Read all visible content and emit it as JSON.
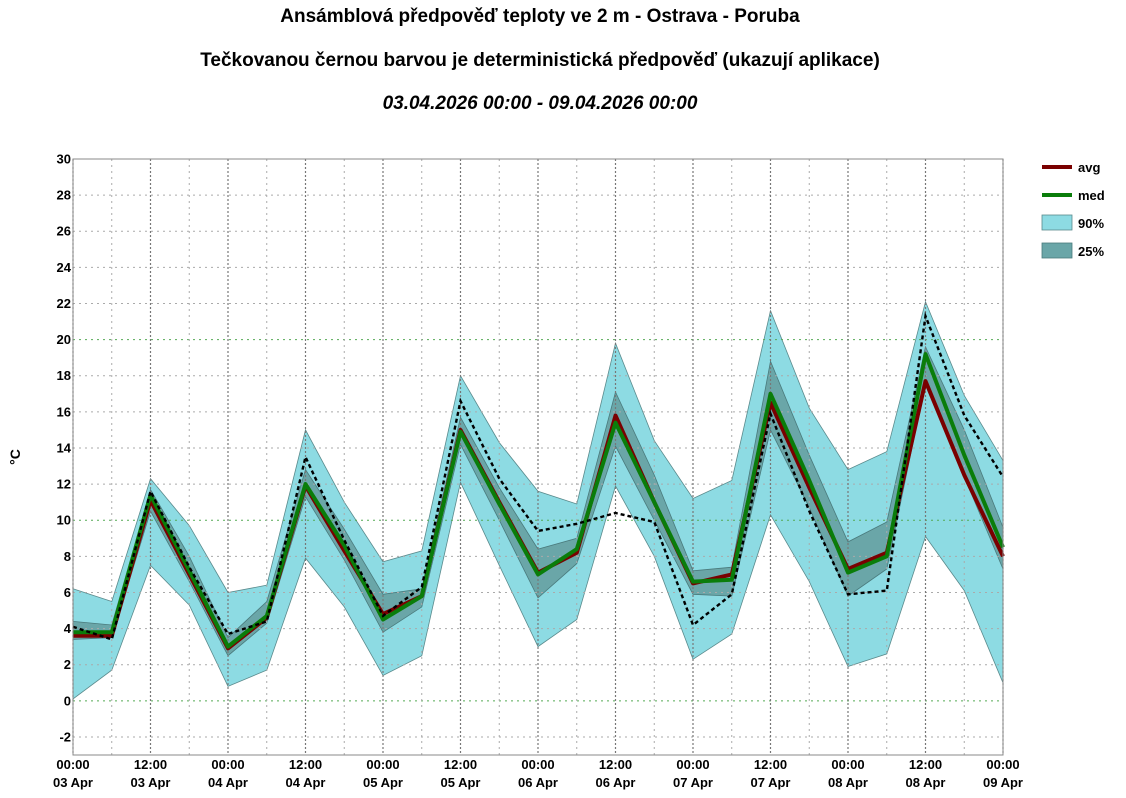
{
  "header": {
    "title": "Ansámblová předpověď teploty ve 2 m - Ostrava - Poruba",
    "subtitle": "Tečkovanou černou barvou je deterministická předpověď (ukazují aplikace)",
    "date_range": "03.04.2026 00:00 - 09.04.2026 00:00"
  },
  "colors": {
    "avg": "#7a0000",
    "med": "#0a7d0a",
    "band90": "#8ddbe3",
    "band25": "#6aa6a8",
    "deterministic": "#000000",
    "grid_major": "#777777",
    "grid_minor": "#aaaaaa",
    "grid_green": "#55aa55"
  },
  "chart_data": {
    "type": "line",
    "title": "Ansámblová předpověď teploty ve 2 m - Ostrava - Poruba",
    "xlabel": "",
    "ylabel": "°C",
    "ylim": [
      -3,
      30
    ],
    "yticks": [
      -2,
      0,
      2,
      4,
      6,
      8,
      10,
      12,
      14,
      16,
      18,
      20,
      22,
      24,
      26,
      28,
      30
    ],
    "xlim": [
      "2026-04-03 00:00",
      "2026-04-09 00:00"
    ],
    "xtick_labels": [
      [
        "00:00",
        "03 Apr"
      ],
      [
        "12:00",
        "03 Apr"
      ],
      [
        "00:00",
        "04 Apr"
      ],
      [
        "12:00",
        "04 Apr"
      ],
      [
        "00:00",
        "05 Apr"
      ],
      [
        "12:00",
        "05 Apr"
      ],
      [
        "00:00",
        "06 Apr"
      ],
      [
        "12:00",
        "06 Apr"
      ],
      [
        "00:00",
        "07 Apr"
      ],
      [
        "12:00",
        "07 Apr"
      ],
      [
        "00:00",
        "08 Apr"
      ],
      [
        "12:00",
        "08 Apr"
      ],
      [
        "00:00",
        "09 Apr"
      ]
    ],
    "x": [
      "2026-04-03 00:00",
      "2026-04-03 06:00",
      "2026-04-03 12:00",
      "2026-04-03 18:00",
      "2026-04-04 00:00",
      "2026-04-04 06:00",
      "2026-04-04 12:00",
      "2026-04-04 18:00",
      "2026-04-05 00:00",
      "2026-04-05 06:00",
      "2026-04-05 12:00",
      "2026-04-05 18:00",
      "2026-04-06 00:00",
      "2026-04-06 06:00",
      "2026-04-06 12:00",
      "2026-04-06 18:00",
      "2026-04-07 00:00",
      "2026-04-07 06:00",
      "2026-04-07 12:00",
      "2026-04-07 18:00",
      "2026-04-08 00:00",
      "2026-04-08 06:00",
      "2026-04-08 12:00",
      "2026-04-08 18:00",
      "2026-04-09 00:00"
    ],
    "series": [
      {
        "name": "avg",
        "values": [
          3.6,
          3.6,
          11.1,
          7.0,
          2.9,
          4.6,
          11.9,
          8.3,
          4.8,
          5.8,
          15.0,
          11.0,
          7.1,
          8.2,
          15.8,
          11.0,
          6.5,
          7.0,
          16.5,
          11.8,
          7.3,
          8.2,
          17.7,
          12.5,
          8.0
        ]
      },
      {
        "name": "med",
        "values": [
          3.8,
          3.8,
          11.4,
          7.2,
          3.0,
          4.7,
          12.0,
          8.6,
          4.5,
          5.8,
          14.9,
          10.9,
          7.0,
          8.4,
          15.4,
          11.0,
          6.6,
          6.7,
          17.0,
          12.2,
          7.1,
          8.0,
          19.2,
          13.6,
          8.5
        ]
      },
      {
        "name": "90%",
        "type": "band",
        "lower": [
          0.1,
          1.7,
          7.5,
          5.3,
          0.8,
          1.7,
          7.9,
          5.2,
          1.4,
          2.5,
          12.1,
          7.5,
          3.0,
          4.5,
          11.9,
          8.0,
          2.3,
          3.7,
          10.3,
          6.6,
          1.9,
          2.6,
          9.1,
          6.1,
          1.0
        ],
        "upper": [
          6.2,
          5.5,
          12.3,
          9.7,
          6.0,
          6.4,
          15.0,
          11.0,
          7.7,
          8.3,
          18.0,
          14.3,
          11.6,
          10.9,
          19.8,
          14.4,
          11.2,
          12.2,
          21.6,
          16.2,
          12.8,
          13.8,
          22.1,
          16.9,
          13.3
        ]
      },
      {
        "name": "25%",
        "type": "band",
        "lower": [
          3.4,
          3.5,
          10.5,
          6.6,
          2.5,
          4.3,
          11.3,
          7.8,
          3.8,
          5.2,
          14.2,
          10.0,
          5.7,
          7.6,
          14.1,
          10.0,
          5.9,
          5.8,
          15.0,
          10.7,
          5.8,
          7.3,
          17.6,
          12.4,
          7.3
        ],
        "upper": [
          4.4,
          4.2,
          11.7,
          8.0,
          3.5,
          5.5,
          12.8,
          9.5,
          5.9,
          6.2,
          15.7,
          11.8,
          8.4,
          9.0,
          17.1,
          12.5,
          7.2,
          7.4,
          18.8,
          13.6,
          8.8,
          9.9,
          19.6,
          15.0,
          9.6
        ]
      },
      {
        "name": "deterministic",
        "style": "dotted",
        "values": [
          4.1,
          3.4,
          11.6,
          7.4,
          3.7,
          4.4,
          13.5,
          8.9,
          4.7,
          6.3,
          16.6,
          12.3,
          9.4,
          9.8,
          10.4,
          9.9,
          4.2,
          5.9,
          15.9,
          10.5,
          5.9,
          6.1,
          21.3,
          15.8,
          12.4
        ]
      }
    ],
    "legend": {
      "placement": "right",
      "entries": [
        "avg",
        "med",
        "90%",
        "25%"
      ]
    },
    "grid": true
  }
}
